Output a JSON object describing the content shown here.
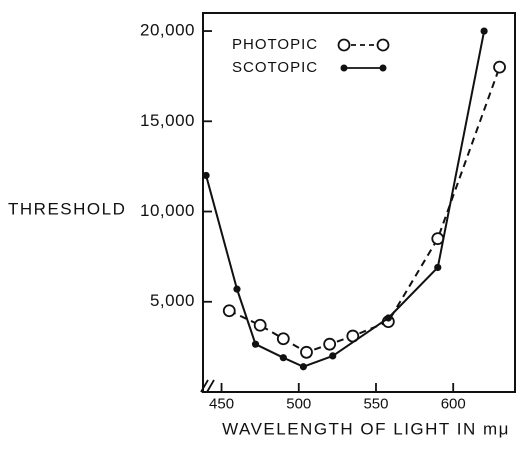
{
  "chart_data": {
    "type": "line",
    "title": "",
    "xlabel": "WAVELENGTH OF LIGHT IN mμ",
    "ylabel": "THRESHOLD",
    "xlim": [
      438,
      640
    ],
    "ylim": [
      0,
      21000
    ],
    "x_ticks": [
      450,
      500,
      550,
      600
    ],
    "x_tick_labels": [
      "450",
      "500",
      "550",
      "600"
    ],
    "y_ticks": [
      5000,
      10000,
      15000,
      20000
    ],
    "y_tick_labels": [
      "5,000",
      "10,000",
      "15,000",
      "20,000"
    ],
    "axis_break_x": true,
    "grid": false,
    "legend_position": "top-left",
    "series": [
      {
        "name": "PHOTOPIC",
        "marker": "open-circle",
        "line_style": "dashed",
        "color": "#111111",
        "points": [
          [
            455,
            4500
          ],
          [
            475,
            3700
          ],
          [
            490,
            2950
          ],
          [
            505,
            2200
          ],
          [
            520,
            2650
          ],
          [
            535,
            3100
          ],
          [
            558,
            3900
          ],
          [
            590,
            8500
          ],
          [
            630,
            18000
          ]
        ]
      },
      {
        "name": "SCOTOPIC",
        "marker": "filled-circle",
        "line_style": "solid",
        "color": "#111111",
        "points": [
          [
            440,
            12000
          ],
          [
            460,
            5700
          ],
          [
            472,
            2650
          ],
          [
            490,
            1900
          ],
          [
            503,
            1400
          ],
          [
            522,
            2000
          ],
          [
            558,
            4100
          ],
          [
            590,
            6900
          ],
          [
            620,
            20000
          ]
        ]
      }
    ]
  }
}
